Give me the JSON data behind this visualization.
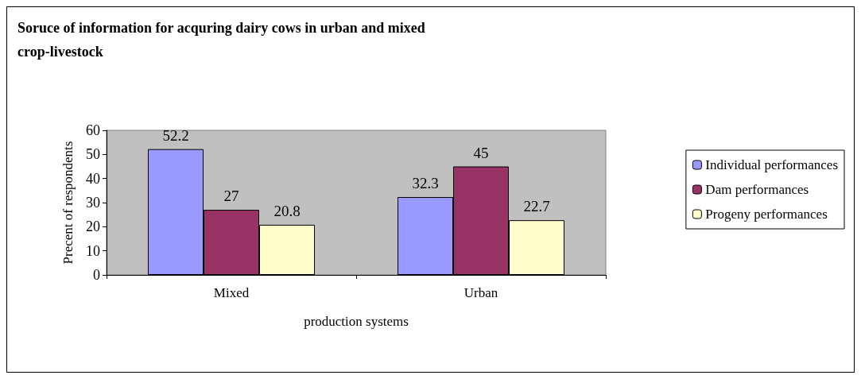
{
  "chart_data": {
    "type": "bar",
    "title": "Soruce of information for acquring dairy cows in urban and mixed crop-livestock",
    "xlabel": "production systems",
    "ylabel": "Precent of respondents",
    "categories": [
      "Mixed",
      "Urban"
    ],
    "series": [
      {
        "name": "Individual performances",
        "color": "#9999ff",
        "values": [
          52.2,
          32.3
        ]
      },
      {
        "name": "Dam performances",
        "color": "#993366",
        "values": [
          27,
          45
        ]
      },
      {
        "name": "Progeny performances",
        "color": "#ffffcc",
        "values": [
          20.8,
          22.7
        ]
      }
    ],
    "ylim": [
      0,
      60
    ],
    "yticks": [
      0,
      10,
      20,
      30,
      40,
      50,
      60
    ],
    "grid": false,
    "legend": "right",
    "data_labels": true
  }
}
